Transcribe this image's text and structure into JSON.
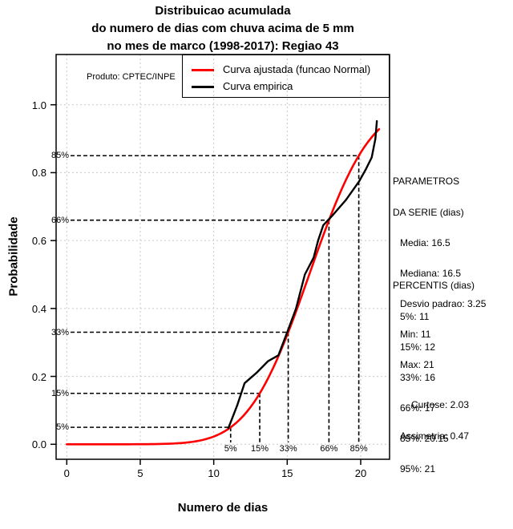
{
  "title": {
    "lines": [
      "Distribuicao acumulada",
      "do numero de dias com chuva acima de 5 mm",
      "no mes de marco (1998-2017): Regiao 43"
    ]
  },
  "produto_note": "Produto: CPTEC/INPE",
  "legend": {
    "items": [
      {
        "label": "Curva ajustada (funcao Normal)",
        "color": "#ff0000"
      },
      {
        "label": "Curva empirica",
        "color": "#000000"
      }
    ]
  },
  "axes": {
    "x": {
      "label": "Numero de dias",
      "ticks": [
        "0",
        "5",
        "10",
        "15",
        "20"
      ],
      "tick_values": [
        0,
        5,
        10,
        15,
        20
      ]
    },
    "y": {
      "label": "Probabilidade",
      "ticks": [
        "0.0",
        "0.2",
        "0.4",
        "0.6",
        "0.8",
        "1.0"
      ],
      "tick_values": [
        0,
        0.2,
        0.4,
        0.6,
        0.8,
        1.0
      ]
    }
  },
  "chart_data": {
    "type": "line",
    "title": "Distribuicao acumulada do numero de dias com chuva acima de 5 mm no mes de marco (1998-2017): Regiao 43",
    "xlabel": "Numero de dias",
    "ylabel": "Probabilidade",
    "xlim": [
      -0.84,
      21.84
    ],
    "ylim": [
      -0.044,
      1.144
    ],
    "grid": true,
    "legend_position": "top-center-inside",
    "series": [
      {
        "name": "Curva ajustada (funcao Normal)",
        "color": "#ff0000",
        "kind": "normal_cdf",
        "mean": 16.5,
        "sd": 3.25,
        "x_start": 0,
        "x_end": 21.25
      },
      {
        "name": "Curva empirica",
        "color": "#000000",
        "kind": "points",
        "points": [
          [
            11.0,
            0.048
          ],
          [
            11.6,
            0.115
          ],
          [
            12.1,
            0.18
          ],
          [
            12.9,
            0.21
          ],
          [
            13.7,
            0.245
          ],
          [
            14.4,
            0.262
          ],
          [
            15.0,
            0.33
          ],
          [
            15.6,
            0.4
          ],
          [
            16.2,
            0.5
          ],
          [
            16.8,
            0.55
          ],
          [
            17.1,
            0.6
          ],
          [
            17.45,
            0.645
          ],
          [
            18.1,
            0.675
          ],
          [
            19.0,
            0.72
          ],
          [
            19.9,
            0.775
          ],
          [
            20.35,
            0.81
          ],
          [
            20.75,
            0.845
          ],
          [
            21.0,
            0.9
          ],
          [
            21.1,
            0.952
          ]
        ]
      }
    ],
    "percentile_guides": [
      {
        "label": "5%",
        "p": 0.05,
        "x": 11.15
      },
      {
        "label": "15%",
        "p": 0.15,
        "x": 13.13
      },
      {
        "label": "33%",
        "p": 0.33,
        "x": 15.07
      },
      {
        "label": "66%",
        "p": 0.66,
        "x": 17.84
      },
      {
        "label": "85%",
        "p": 0.85,
        "x": 19.87
      }
    ]
  },
  "stats": {
    "serie": {
      "header1": "PARAMETROS",
      "header2": "DA SERIE (dias)",
      "items": [
        "Media: 16.5",
        "Mediana: 16.5",
        "Desvio padrao: 3.25",
        "Min: 11",
        "Max: 21"
      ]
    },
    "percentis": {
      "header": "PERCENTIS (dias)",
      "items": [
        "5%: 11",
        "15%: 12",
        "33%: 16",
        "66%: 17",
        "85%: 20.15",
        "95%: 21"
      ]
    },
    "moments": {
      "items": [
        "Curtose: 2.03",
        "Assimetria: 0.47"
      ]
    }
  },
  "colors": {
    "fitted": "#ff0000",
    "empirical": "#000000",
    "grid": "#c9c9c9",
    "guide": "#000000",
    "box": "#000000"
  }
}
